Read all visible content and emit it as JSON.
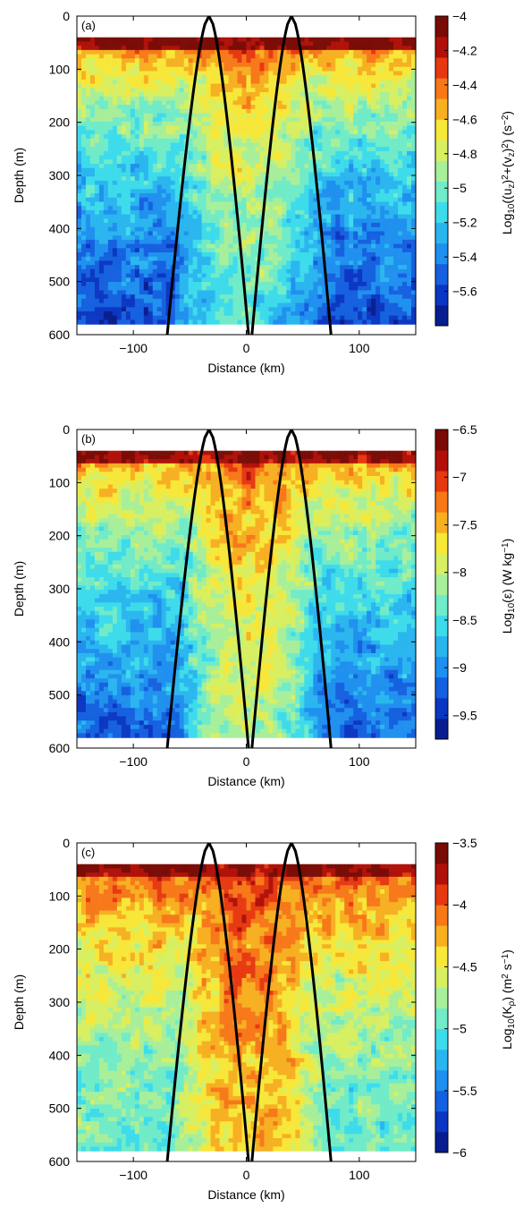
{
  "chart_data": [
    {
      "type": "heatmap",
      "panel_label": "(a)",
      "xlabel": "Distance (km)",
      "ylabel": "Depth (m)",
      "xlim": [
        -150,
        150
      ],
      "ylim": [
        0,
        600
      ],
      "y_inverted": true,
      "x_ticks": [
        -100,
        0,
        100
      ],
      "x_tick_labels": [
        "−100",
        "0",
        "100"
      ],
      "y_ticks": [
        0,
        100,
        200,
        300,
        400,
        500,
        600
      ],
      "y_tick_labels": [
        "0",
        "100",
        "200",
        "300",
        "400",
        "500",
        "600"
      ],
      "data_top_depth": 40,
      "data_bottom_depth": 580,
      "colorbar": {
        "label": "Log₁₀(⟨u_z²+v_z²⟩) (s⁻²)",
        "label_parts": [
          "Log",
          "10",
          "((u",
          "z",
          ")",
          "2",
          "+(v",
          "z",
          ")",
          "2",
          ") (s",
          "−2",
          ")"
        ],
        "min": -5.8,
        "max": -4.0,
        "ticks": [
          -4,
          -4.2,
          -4.4,
          -4.6,
          -4.8,
          -5,
          -5.2,
          -5.4,
          -5.6
        ],
        "tick_labels": [
          "−4",
          "−4.2",
          "−4.4",
          "−4.6",
          "−4.8",
          "−5",
          "−5.2",
          "−5.4",
          "−5.6"
        ]
      },
      "field_summary": {
        "surface_value": -4.1,
        "deep_outside_value": -5.6,
        "deep_core_value": -5.1
      }
    },
    {
      "type": "heatmap",
      "panel_label": "(b)",
      "xlabel": "Distance (km)",
      "ylabel": "Depth (m)",
      "xlim": [
        -150,
        150
      ],
      "ylim": [
        0,
        600
      ],
      "y_inverted": true,
      "x_ticks": [
        -100,
        0,
        100
      ],
      "x_tick_labels": [
        "−100",
        "0",
        "100"
      ],
      "y_ticks": [
        0,
        100,
        200,
        300,
        400,
        500,
        600
      ],
      "y_tick_labels": [
        "0",
        "100",
        "200",
        "300",
        "400",
        "500",
        "600"
      ],
      "data_top_depth": 40,
      "data_bottom_depth": 580,
      "colorbar": {
        "label": "Log₁₀(⟨ε⟩) (W kg⁻¹)",
        "label_parts": [
          "Log",
          "10",
          "(ε)  (W kg",
          "−1",
          ")"
        ],
        "min": -9.75,
        "max": -6.5,
        "ticks": [
          -6.5,
          -7,
          -7.5,
          -8,
          -8.5,
          -9,
          -9.5
        ],
        "tick_labels": [
          "−6.5",
          "−7",
          "−7.5",
          "−8",
          "−8.5",
          "−9",
          "−9.5"
        ]
      },
      "field_summary": {
        "surface_value": -6.8,
        "deep_outside_value": -9.2,
        "deep_core_value": -8.1
      }
    },
    {
      "type": "heatmap",
      "panel_label": "(c)",
      "xlabel": "Distance (km)",
      "ylabel": "Depth (m)",
      "xlim": [
        -150,
        150
      ],
      "ylim": [
        0,
        600
      ],
      "y_inverted": true,
      "x_ticks": [
        -100,
        0,
        100
      ],
      "x_tick_labels": [
        "−100",
        "0",
        "100"
      ],
      "y_ticks": [
        0,
        100,
        200,
        300,
        400,
        500,
        600
      ],
      "y_tick_labels": [
        "0",
        "100",
        "200",
        "300",
        "400",
        "500",
        "600"
      ],
      "data_top_depth": 40,
      "data_bottom_depth": 580,
      "colorbar": {
        "label": "Log₁₀(⟨K_ρ⟩) (m² s⁻¹)",
        "label_parts": [
          "Log",
          "10",
          "(K",
          "ρ",
          ")  (m",
          "2",
          " s",
          "−1",
          ")"
        ],
        "min": -6.0,
        "max": -3.5,
        "ticks": [
          -3.5,
          -4,
          -4.5,
          -5,
          -5.5,
          -6
        ],
        "tick_labels": [
          "−3.5",
          "−4",
          "−4.5",
          "−5",
          "−5.5",
          "−6"
        ]
      },
      "field_summary": {
        "surface_value": -3.7,
        "deep_outside_value": -5.0,
        "deep_core_value": -4.3
      }
    }
  ],
  "wave_ray_paths": {
    "description_color": "#000000",
    "curves": [
      {
        "points": [
          [
            -33,
            0
          ],
          [
            -70,
            600
          ]
        ]
      },
      {
        "points": [
          [
            -33,
            0
          ],
          [
            2,
            600
          ]
        ]
      },
      {
        "points": [
          [
            40,
            0
          ],
          [
            5,
            600
          ]
        ]
      },
      {
        "points": [
          [
            40,
            0
          ],
          [
            75,
            600
          ]
        ]
      }
    ]
  },
  "colormap": [
    "#081d8f",
    "#0a36c4",
    "#1460e0",
    "#1e90f0",
    "#29b6f0",
    "#3cdcec",
    "#70ecc8",
    "#a8f09a",
    "#d8f060",
    "#f8e838",
    "#f8b020",
    "#f87818",
    "#e83810",
    "#b01008",
    "#7a0a04"
  ]
}
